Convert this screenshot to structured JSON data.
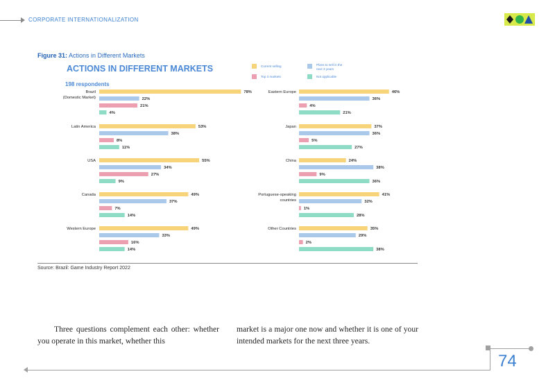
{
  "header": {
    "title": "CORPORATE INTERNATIONALIZATION"
  },
  "logo": {
    "colors": [
      "#1a1a1a",
      "#2fb34a",
      "#1f4fa8"
    ],
    "background": "#d8e94a"
  },
  "figure": {
    "label": "Figure 31:",
    "title": "Actions in Different Markets"
  },
  "chart_data": {
    "type": "bar",
    "orientation": "horizontal",
    "title": "ACTIONS IN DIFFERENT MARKETS",
    "subtitle": "198 respondents",
    "series": [
      {
        "name": "Current selling",
        "color": "#f7d47a"
      },
      {
        "name": "Plans to sell in the next 3 years",
        "color": "#a9c8ea"
      },
      {
        "name": "Top 3 markets",
        "color": "#ec9fb0"
      },
      {
        "name": "Not applicable",
        "color": "#8fdcc6"
      }
    ],
    "groups": [
      {
        "label": "Brazil (Domestic Market)",
        "values": [
          78,
          22,
          21,
          4
        ]
      },
      {
        "label": "Latin America",
        "values": [
          53,
          38,
          8,
          11
        ]
      },
      {
        "label": "USA",
        "values": [
          55,
          34,
          27,
          9
        ]
      },
      {
        "label": "Canada",
        "values": [
          49,
          37,
          7,
          14
        ]
      },
      {
        "label": "Western Europe",
        "values": [
          49,
          33,
          16,
          14
        ]
      },
      {
        "label": "Eastern Europe",
        "values": [
          46,
          36,
          4,
          21
        ]
      },
      {
        "label": "Japan",
        "values": [
          37,
          36,
          5,
          27
        ]
      },
      {
        "label": "China",
        "values": [
          24,
          38,
          9,
          36
        ]
      },
      {
        "label": "Portuguese-speaking countries",
        "values": [
          41,
          32,
          1,
          28
        ]
      },
      {
        "label": "Other Countries",
        "values": [
          35,
          29,
          2,
          38
        ]
      }
    ],
    "value_suffix": "%",
    "xlim": [
      0,
      100
    ]
  },
  "source": "Source: Brazil: Game Industry Report 2022",
  "body": {
    "left": "Three questions complement each other: whether you operate in this market, whether this",
    "right": "market is a major one now and whether it is one of your intended markets for the next three years."
  },
  "page_number": "74"
}
